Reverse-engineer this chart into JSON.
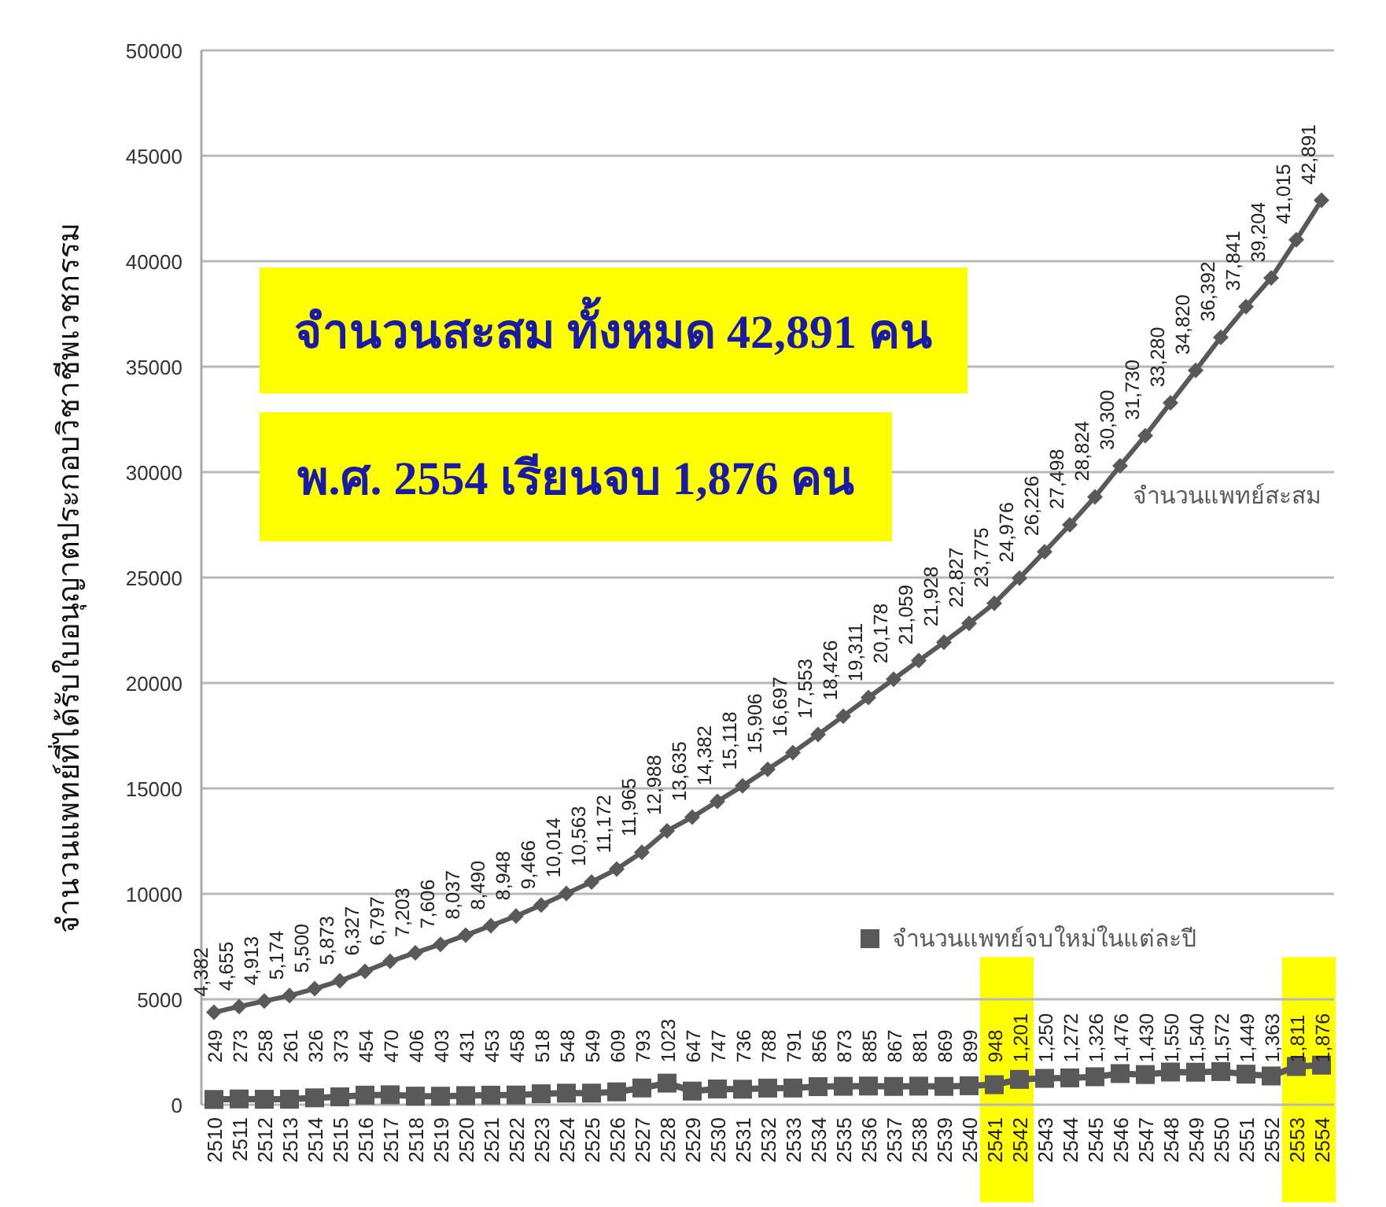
{
  "chart_data": {
    "type": "line",
    "ylabel": "จำนวนแพทย์ที่ได้รับใบอนุญาตประกอบวิชาชีพเวชกรรม",
    "categories": [
      "2510",
      "2511",
      "2512",
      "2513",
      "2514",
      "2515",
      "2516",
      "2517",
      "2518",
      "2519",
      "2520",
      "2521",
      "2522",
      "2523",
      "2524",
      "2525",
      "2526",
      "2527",
      "2528",
      "2529",
      "2530",
      "2531",
      "2532",
      "2533",
      "2534",
      "2535",
      "2536",
      "2537",
      "2538",
      "2539",
      "2540",
      "2541",
      "2542",
      "2543",
      "2544",
      "2545",
      "2546",
      "2547",
      "2548",
      "2549",
      "2550",
      "2551",
      "2552",
      "2553",
      "2554"
    ],
    "series": [
      {
        "name": "จำนวนแพทย์สะสม",
        "color": "#595959",
        "marker": "diamond",
        "values": [
          4382,
          4655,
          4913,
          5174,
          5500,
          5873,
          6327,
          6797,
          7203,
          7606,
          8037,
          8490,
          8948,
          9466,
          10014,
          10563,
          11172,
          11965,
          12988,
          13635,
          14382,
          15118,
          15906,
          16697,
          17553,
          18426,
          19311,
          20178,
          21059,
          21928,
          22827,
          23775,
          24976,
          26226,
          27498,
          28824,
          30300,
          31730,
          33280,
          34820,
          36392,
          37841,
          39204,
          41015,
          42891
        ],
        "value_labels": [
          "4,382",
          "4,655",
          "4,913",
          "5,174",
          "5,500",
          "5,873",
          "6,327",
          "6,797",
          "7,203",
          "7,606",
          "8,037",
          "8,490",
          "8,948",
          "9,466",
          "10,014",
          "10,563",
          "11,172",
          "11,965",
          "12,988",
          "13,635",
          "14,382",
          "15,118",
          "15,906",
          "16,697",
          "17,553",
          "18,426",
          "19,311",
          "20,178",
          "21,059",
          "21,928",
          "22,827",
          "23,775",
          "24,976",
          "26,226",
          "27,498",
          "28,824",
          "30,300",
          "31,730",
          "33,280",
          "34,820",
          "36,392",
          "37,841",
          "39,204",
          "41,015",
          "42,891"
        ]
      },
      {
        "name": "จำนวนแพทย์จบใหม่ในแต่ละปี",
        "color": "#595959",
        "marker": "square",
        "values": [
          249,
          273,
          258,
          261,
          326,
          373,
          454,
          470,
          406,
          403,
          431,
          453,
          458,
          518,
          548,
          549,
          609,
          793,
          1023,
          647,
          747,
          736,
          788,
          791,
          856,
          873,
          885,
          867,
          881,
          869,
          899,
          948,
          1201,
          1250,
          1272,
          1326,
          1476,
          1430,
          1550,
          1540,
          1572,
          1449,
          1363,
          1811,
          1876
        ],
        "value_labels": [
          "249",
          "273",
          "258",
          "261",
          "326",
          "373",
          "454",
          "470",
          "406",
          "403",
          "431",
          "453",
          "458",
          "518",
          "548",
          "549",
          "609",
          "793",
          "1023",
          "647",
          "747",
          "736",
          "788",
          "791",
          "856",
          "873",
          "885",
          "867",
          "881",
          "869",
          "899",
          "948",
          "1,201",
          "1,250",
          "1,272",
          "1,326",
          "1,476",
          "1,430",
          "1,550",
          "1,540",
          "1,572",
          "1,449",
          "1,363",
          "1,811",
          "1,876"
        ]
      }
    ],
    "ylim": [
      0,
      50000
    ],
    "yticks": [
      0,
      5000,
      10000,
      15000,
      20000,
      25000,
      30000,
      35000,
      40000,
      45000,
      50000
    ],
    "grid": "y",
    "bands": [
      {
        "axis": "x",
        "from": "2541",
        "to": "2542",
        "color": "#ffff00"
      },
      {
        "axis": "x",
        "from": "2553",
        "to": "2554",
        "color": "#ffff00"
      }
    ],
    "annotations": [
      "จำนวนสะสม ทั้งหมด 42,891 คน",
      "พ.ศ. 2554 เรียนจบ 1,876 คน"
    ]
  }
}
